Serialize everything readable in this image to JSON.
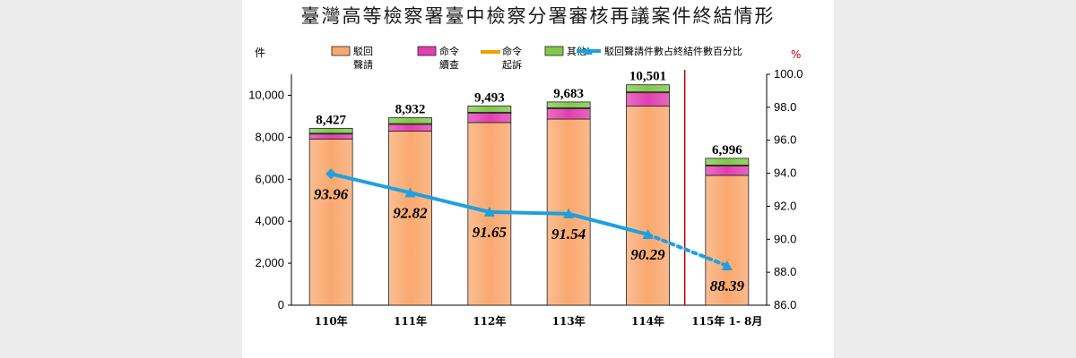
{
  "title": "臺灣高等檢察署臺中檢察分署審核再議案件終結情形",
  "chart_data": {
    "type": "bar",
    "stacked": true,
    "categories": [
      "110年",
      "111年",
      "112年",
      "113年",
      "114年",
      "115年 1- 8月"
    ],
    "totals_labels": [
      "8,427",
      "8,932",
      "9,493",
      "9,683",
      "10,501",
      "6,996"
    ],
    "totals": [
      8427,
      8932,
      9493,
      9683,
      10501,
      6996
    ],
    "series": [
      {
        "name": "駁回聲請",
        "color": "#f9a86f",
        "values": [
          7918,
          8291,
          8700,
          8864,
          9481,
          6184
        ]
      },
      {
        "name": "命令續查",
        "color": "#e040b0",
        "values": [
          264,
          349,
          479,
          525,
          664,
          482
        ]
      },
      {
        "name": "命令起訴",
        "color": "#f0a000",
        "values": [
          10,
          12,
          14,
          15,
          16,
          10
        ]
      },
      {
        "name": "其他",
        "color": "#7fc84a",
        "values": [
          235,
          280,
          300,
          279,
          340,
          320
        ]
      }
    ],
    "line_series": {
      "name": "駁回聲請件數占終結件數百分比",
      "color": "#1ea0e0",
      "values": [
        93.96,
        92.82,
        91.65,
        91.54,
        90.29,
        88.39
      ],
      "labels": [
        "93.96",
        "92.82",
        "91.65",
        "91.54",
        "90.29",
        "88.39"
      ],
      "dotted_last_segment": true
    },
    "ylabel_left": "件",
    "ylabel_right": "%",
    "ylim_left": [
      0,
      11000
    ],
    "yticks_left": [
      "0",
      "2,000",
      "4,000",
      "6,000",
      "8,000",
      "10,000"
    ],
    "ylim_right": [
      86,
      100
    ],
    "yticks_right": [
      "86.0",
      "88.0",
      "90.0",
      "92.0",
      "94.0",
      "96.0",
      "98.0",
      "100.0"
    ],
    "legend": {
      "placement": "top",
      "items": [
        {
          "line1": "駁回",
          "line2": "聲請"
        },
        {
          "line1": "命令",
          "line2": "續查"
        },
        {
          "line1": "命令",
          "line2": "起訴"
        },
        {
          "line1": "其他",
          "line2": ""
        },
        {
          "line1": "駁回聲請件數占終結件數百分比",
          "line2": ""
        }
      ]
    },
    "separator_color": "#c00000"
  }
}
